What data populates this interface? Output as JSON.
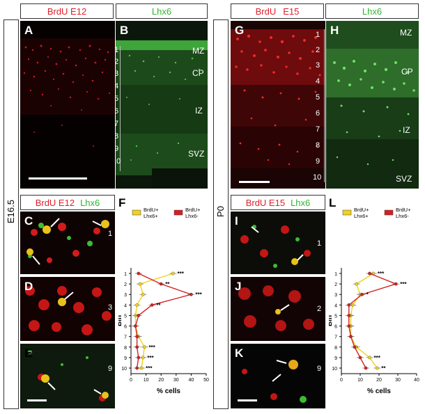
{
  "headers": {
    "left_a": "BrdU E12",
    "left_b": "Lhx6",
    "right_g_part1": "BrdU",
    "right_g_part2": "E15",
    "right_h": "Lhx6"
  },
  "side_labels": {
    "left": "E16.5",
    "right": "P0"
  },
  "panel_letters": {
    "A": "A",
    "B": "B",
    "C": "C",
    "D": "D",
    "E": "E",
    "F": "F",
    "G": "G",
    "H": "H",
    "I": "I",
    "J": "J",
    "K": "K",
    "L": "L"
  },
  "zones_left": {
    "mz": "MZ",
    "cp": "CP",
    "iz": "IZ",
    "svz": "SVZ"
  },
  "zones_right": {
    "mz": "MZ",
    "cp": "CP",
    "iz": "IZ",
    "svz": "SVZ"
  },
  "bins": [
    "1",
    "2",
    "3",
    "4",
    "5",
    "6",
    "7",
    "8",
    "9",
    "10"
  ],
  "mid_headers": {
    "left_part1": "BrdU E12",
    "left_part2": "Lhx6",
    "right_part1": "BrdU E15",
    "right_part2": "Lhx6"
  },
  "inset_bins": {
    "C": "1",
    "D": "3",
    "E": "9",
    "I": "1",
    "J": "2",
    "K": "9"
  },
  "chart_data": [
    {
      "id": "F",
      "type": "line",
      "xlabel": "% cells",
      "ylabel": "Bin",
      "xlim": [
        0,
        50
      ],
      "x_ticks": [
        "0",
        "10",
        "20",
        "30",
        "40",
        "50"
      ],
      "y_ticks": [
        "1",
        "2",
        "3",
        "4",
        "5",
        "6",
        "7",
        "8",
        "9",
        "10"
      ],
      "legend": [
        "BrdU+\nLhx6+",
        "BrdU+\nLhx6-"
      ],
      "series": [
        {
          "name": "BrdU+ Lhx6+",
          "color": "#f2d21b",
          "bins": [
            1,
            2,
            3,
            4,
            5,
            6,
            7,
            8,
            9,
            10
          ],
          "values": [
            28,
            6,
            8,
            4,
            3,
            3,
            5,
            9,
            8,
            7
          ]
        },
        {
          "name": "BrdU+ Lhx6-",
          "color": "#d42020",
          "bins": [
            1,
            2,
            3,
            4,
            5,
            6,
            7,
            8,
            9,
            10
          ],
          "values": [
            5,
            20,
            40,
            14,
            5,
            3,
            4,
            4,
            5,
            4
          ]
        }
      ],
      "significance": [
        {
          "bin": 1,
          "label": "***"
        },
        {
          "bin": 2,
          "label": "**"
        },
        {
          "bin": 3,
          "label": "***"
        },
        {
          "bin": 4,
          "label": "**"
        },
        {
          "bin": 8,
          "label": "***"
        },
        {
          "bin": 9,
          "label": "***"
        },
        {
          "bin": 10,
          "label": "***"
        }
      ]
    },
    {
      "id": "L",
      "type": "line",
      "xlabel": "% cells",
      "ylabel": "Bin",
      "xlim": [
        0,
        40
      ],
      "x_ticks": [
        "0",
        "10",
        "20",
        "30",
        "40"
      ],
      "y_ticks": [
        "1",
        "2",
        "3",
        "4",
        "5",
        "6",
        "7",
        "8",
        "9",
        "10"
      ],
      "legend": [
        "BrdU+\nLhx6+",
        "BrdU+\nLhx6-"
      ],
      "series": [
        {
          "name": "BrdU+ Lhx6+",
          "color": "#f2d21b",
          "bins": [
            1,
            2,
            3,
            4,
            5,
            6,
            7,
            8,
            9,
            10
          ],
          "values": [
            17,
            8,
            10,
            6,
            5,
            5,
            5,
            8,
            15,
            19
          ]
        },
        {
          "name": "BrdU+ Lhx6-",
          "color": "#d42020",
          "bins": [
            1,
            2,
            3,
            4,
            5,
            6,
            7,
            8,
            9,
            10
          ],
          "values": [
            15,
            29,
            11,
            4,
            4,
            4,
            5,
            7,
            10,
            13
          ]
        }
      ],
      "significance": [
        {
          "bin": 1,
          "label": "***"
        },
        {
          "bin": 2,
          "label": "***"
        },
        {
          "bin": 3,
          "label": "*"
        },
        {
          "bin": 9,
          "label": "***"
        },
        {
          "bin": 10,
          "label": "**"
        }
      ]
    }
  ]
}
